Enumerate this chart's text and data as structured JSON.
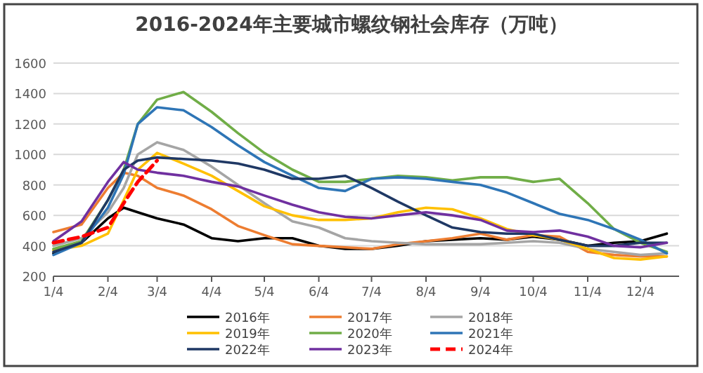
{
  "chart_data": {
    "type": "line",
    "title": "2016-2024年主要城市螺纹钢社会库存（万吨）",
    "x": [
      "--01-04",
      "--01-20",
      "--02-04",
      "--02-13",
      "--02-21",
      "--03-04",
      "--03-19",
      "--04-04",
      "--04-19",
      "--05-04",
      "--05-20",
      "--06-04",
      "--06-19",
      "--07-04",
      "--07-19",
      "--08-04",
      "--08-19",
      "--09-04",
      "--09-19",
      "--10-04",
      "--10-19",
      "--11-04",
      "--11-19",
      "--12-04",
      "--12-19"
    ],
    "xlim": [
      "--01-04",
      "--12-26"
    ],
    "xticks": [
      {
        "value": "--01-04",
        "label": "1/4"
      },
      {
        "value": "--02-04",
        "label": "2/4"
      },
      {
        "value": "--03-04",
        "label": "3/4"
      },
      {
        "value": "--04-04",
        "label": "4/4"
      },
      {
        "value": "--05-04",
        "label": "5/4"
      },
      {
        "value": "--06-04",
        "label": "6/4"
      },
      {
        "value": "--07-04",
        "label": "7/4"
      },
      {
        "value": "--08-04",
        "label": "8/4"
      },
      {
        "value": "--09-04",
        "label": "9/4"
      },
      {
        "value": "--10-04",
        "label": "10/4"
      },
      {
        "value": "--11-04",
        "label": "11/4"
      },
      {
        "value": "--12-04",
        "label": "12/4"
      }
    ],
    "ylim": [
      200,
      1600
    ],
    "yticks": [
      200,
      400,
      600,
      800,
      1000,
      1200,
      1400,
      1600
    ],
    "grid": "y",
    "legend": "bottom",
    "marker": "none",
    "series": [
      {
        "name": "2016年",
        "color": "#000000",
        "values": [
          350,
          420,
          580,
          650,
          620,
          580,
          540,
          450,
          430,
          450,
          450,
          400,
          380,
          380,
          400,
          430,
          440,
          450,
          440,
          460,
          440,
          400,
          420,
          430,
          480
        ]
      },
      {
        "name": "2017年",
        "color": "#ed7d31",
        "values": [
          490,
          540,
          780,
          880,
          860,
          780,
          730,
          640,
          530,
          470,
          410,
          400,
          390,
          380,
          410,
          430,
          450,
          480,
          440,
          470,
          460,
          360,
          340,
          330,
          330
        ]
      },
      {
        "name": "2018年",
        "color": "#a5a5a5",
        "values": [
          400,
          450,
          620,
          780,
          1000,
          1080,
          1030,
          920,
          800,
          680,
          560,
          520,
          450,
          430,
          420,
          410,
          410,
          410,
          420,
          430,
          420,
          380,
          360,
          340,
          350
        ]
      },
      {
        "name": "2019年",
        "color": "#ffc000",
        "values": [
          370,
          400,
          480,
          700,
          900,
          1010,
          940,
          860,
          760,
          660,
          600,
          570,
          570,
          580,
          620,
          650,
          640,
          580,
          510,
          470,
          440,
          380,
          320,
          310,
          330
        ]
      },
      {
        "name": "2020年",
        "color": "#70ad47",
        "values": [
          380,
          430,
          700,
          900,
          1200,
          1360,
          1410,
          1280,
          1140,
          1010,
          900,
          820,
          820,
          840,
          860,
          850,
          830,
          850,
          850,
          820,
          840,
          680,
          510,
          420,
          360
        ]
      },
      {
        "name": "2021年",
        "color": "#2e75b6",
        "values": [
          340,
          420,
          650,
          870,
          1200,
          1310,
          1290,
          1180,
          1060,
          950,
          860,
          780,
          760,
          840,
          850,
          840,
          820,
          800,
          750,
          680,
          610,
          570,
          510,
          440,
          350
        ]
      },
      {
        "name": "2022年",
        "color": "#1f3864",
        "values": [
          360,
          420,
          700,
          900,
          960,
          980,
          970,
          960,
          940,
          900,
          840,
          840,
          860,
          780,
          690,
          600,
          520,
          490,
          480,
          480,
          440,
          400,
          400,
          420,
          420
        ]
      },
      {
        "name": "2023年",
        "color": "#7030a0",
        "values": [
          430,
          560,
          820,
          950,
          900,
          880,
          860,
          820,
          790,
          730,
          670,
          620,
          590,
          580,
          600,
          620,
          600,
          570,
          500,
          490,
          500,
          460,
          400,
          390,
          420
        ]
      },
      {
        "name": "2024年",
        "color": "#ff0000",
        "line_style": "dashed",
        "values": [
          420,
          460,
          520,
          680,
          820,
          960,
          null,
          null,
          null,
          null,
          null,
          null,
          null,
          null,
          null,
          null,
          null,
          null,
          null,
          null,
          null,
          null,
          null,
          null,
          null
        ]
      }
    ]
  }
}
